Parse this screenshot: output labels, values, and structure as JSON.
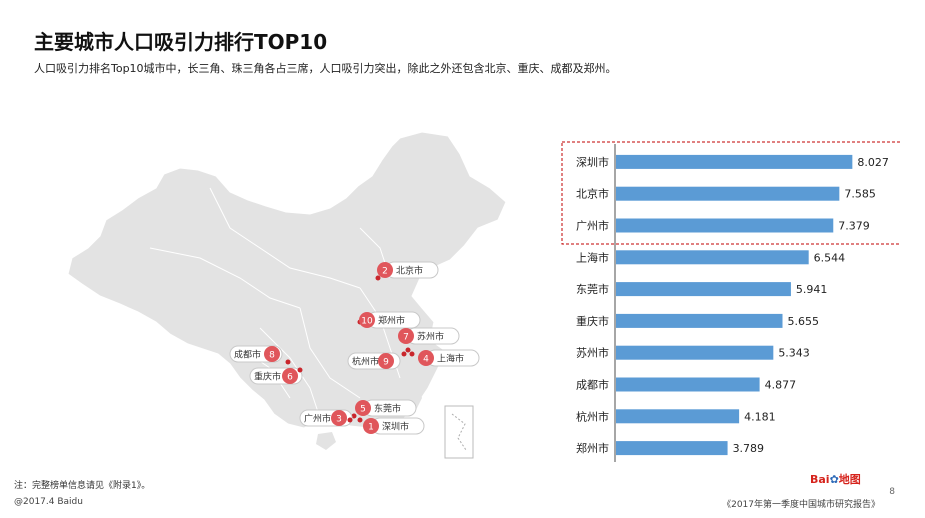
{
  "header": {
    "title": "主要城市人口吸引力排行TOP10",
    "subtitle": "人口吸引力排名Top10城市中，长三角、珠三角各占三席，人口吸引力突出，除此之外还包含北京、重庆、成都及郑州。"
  },
  "map": {
    "markers": [
      {
        "rank": "2",
        "city": "北京市"
      },
      {
        "rank": "10",
        "city": "郑州市"
      },
      {
        "rank": "7",
        "city": "苏州市"
      },
      {
        "rank": "9",
        "city": "杭州市"
      },
      {
        "rank": "4",
        "city": "上海市"
      },
      {
        "rank": "8",
        "city": "成都市"
      },
      {
        "rank": "6",
        "city": "重庆市"
      },
      {
        "rank": "5",
        "city": "东莞市"
      },
      {
        "rank": "3",
        "city": "广州市"
      },
      {
        "rank": "1",
        "city": "深圳市"
      }
    ],
    "colors": {
      "land": "#e3e3e3",
      "marker": "#e0565b",
      "highlight": "#c9262c"
    }
  },
  "chart_data": {
    "type": "bar",
    "orientation": "horizontal",
    "categories": [
      "深圳市",
      "北京市",
      "广州市",
      "上海市",
      "东莞市",
      "重庆市",
      "苏州市",
      "成都市",
      "杭州市",
      "郑州市"
    ],
    "values": [
      8.027,
      7.585,
      7.379,
      6.544,
      5.941,
      5.655,
      5.343,
      4.877,
      4.181,
      3.789
    ],
    "value_labels": [
      "8.027",
      "7.585",
      "7.379",
      "6.544",
      "5.941",
      "5.655",
      "5.343",
      "4.877",
      "4.181",
      "3.789"
    ],
    "xlim": [
      0,
      9
    ],
    "highlight_top": 3,
    "bar_color": "#5b9bd5",
    "highlight_border_color": "#c00000"
  },
  "footer": {
    "note": "注：完整榜单信息请见《附录1》。",
    "copyright": "@2017.4 Baidu",
    "source": "《2017年第一季度中国城市研究报告》",
    "page_number": "8",
    "logo_text": "Bai",
    "logo_paw": "✿",
    "logo_suffix": "地图"
  }
}
